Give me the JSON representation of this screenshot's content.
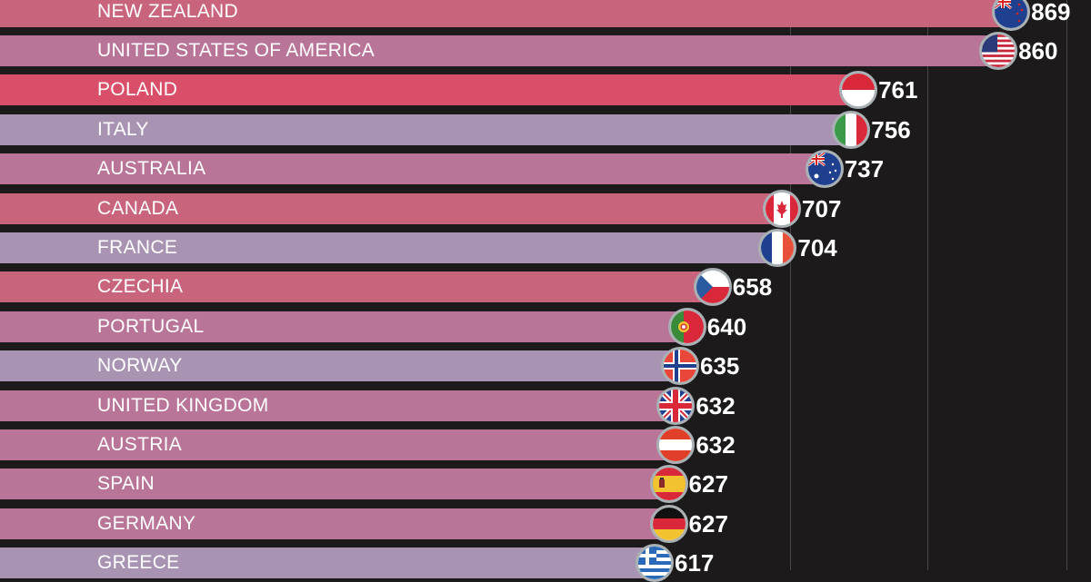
{
  "chart_data": {
    "type": "bar",
    "orientation": "horizontal",
    "title": "",
    "xlabel": "",
    "ylabel": "",
    "grid": true,
    "categories": [
      "NEW ZEALAND",
      "UNITED STATES OF AMERICA",
      "POLAND",
      "ITALY",
      "AUSTRALIA",
      "CANADA",
      "FRANCE",
      "CZECHIA",
      "PORTUGAL",
      "NORWAY",
      "UNITED KINGDOM",
      "AUSTRIA",
      "SPAIN",
      "GERMANY",
      "GREECE"
    ],
    "values": [
      869,
      860,
      761,
      756,
      737,
      707,
      704,
      658,
      640,
      635,
      632,
      632,
      627,
      627,
      617
    ]
  },
  "rows": [
    {
      "label": "NEW ZEALAND",
      "value": "869",
      "flag": "new-zealand",
      "color": "#c9647d"
    },
    {
      "label": "UNITED STATES OF AMERICA",
      "value": "860",
      "flag": "usa",
      "color": "#b87597"
    },
    {
      "label": "POLAND",
      "value": "761",
      "flag": "poland",
      "color": "#d94f69"
    },
    {
      "label": "ITALY",
      "value": "756",
      "flag": "italy",
      "color": "#a993b3"
    },
    {
      "label": "AUSTRALIA",
      "value": "737",
      "flag": "australia",
      "color": "#b87597"
    },
    {
      "label": "CANADA",
      "value": "707",
      "flag": "canada",
      "color": "#c9647d"
    },
    {
      "label": "FRANCE",
      "value": "704",
      "flag": "france",
      "color": "#a993b3"
    },
    {
      "label": "CZECHIA",
      "value": "658",
      "flag": "czechia",
      "color": "#c9647d"
    },
    {
      "label": "PORTUGAL",
      "value": "640",
      "flag": "portugal",
      "color": "#b87597"
    },
    {
      "label": "NORWAY",
      "value": "635",
      "flag": "norway",
      "color": "#a993b3"
    },
    {
      "label": "UNITED KINGDOM",
      "value": "632",
      "flag": "united-kingdom",
      "color": "#b87597"
    },
    {
      "label": "AUSTRIA",
      "value": "632",
      "flag": "austria",
      "color": "#b87597"
    },
    {
      "label": "SPAIN",
      "value": "627",
      "flag": "spain",
      "color": "#b87597"
    },
    {
      "label": "GERMANY",
      "value": "627",
      "flag": "germany",
      "color": "#b87597"
    },
    {
      "label": "GREECE",
      "value": "617",
      "flag": "greece",
      "color": "#a993b3"
    }
  ]
}
